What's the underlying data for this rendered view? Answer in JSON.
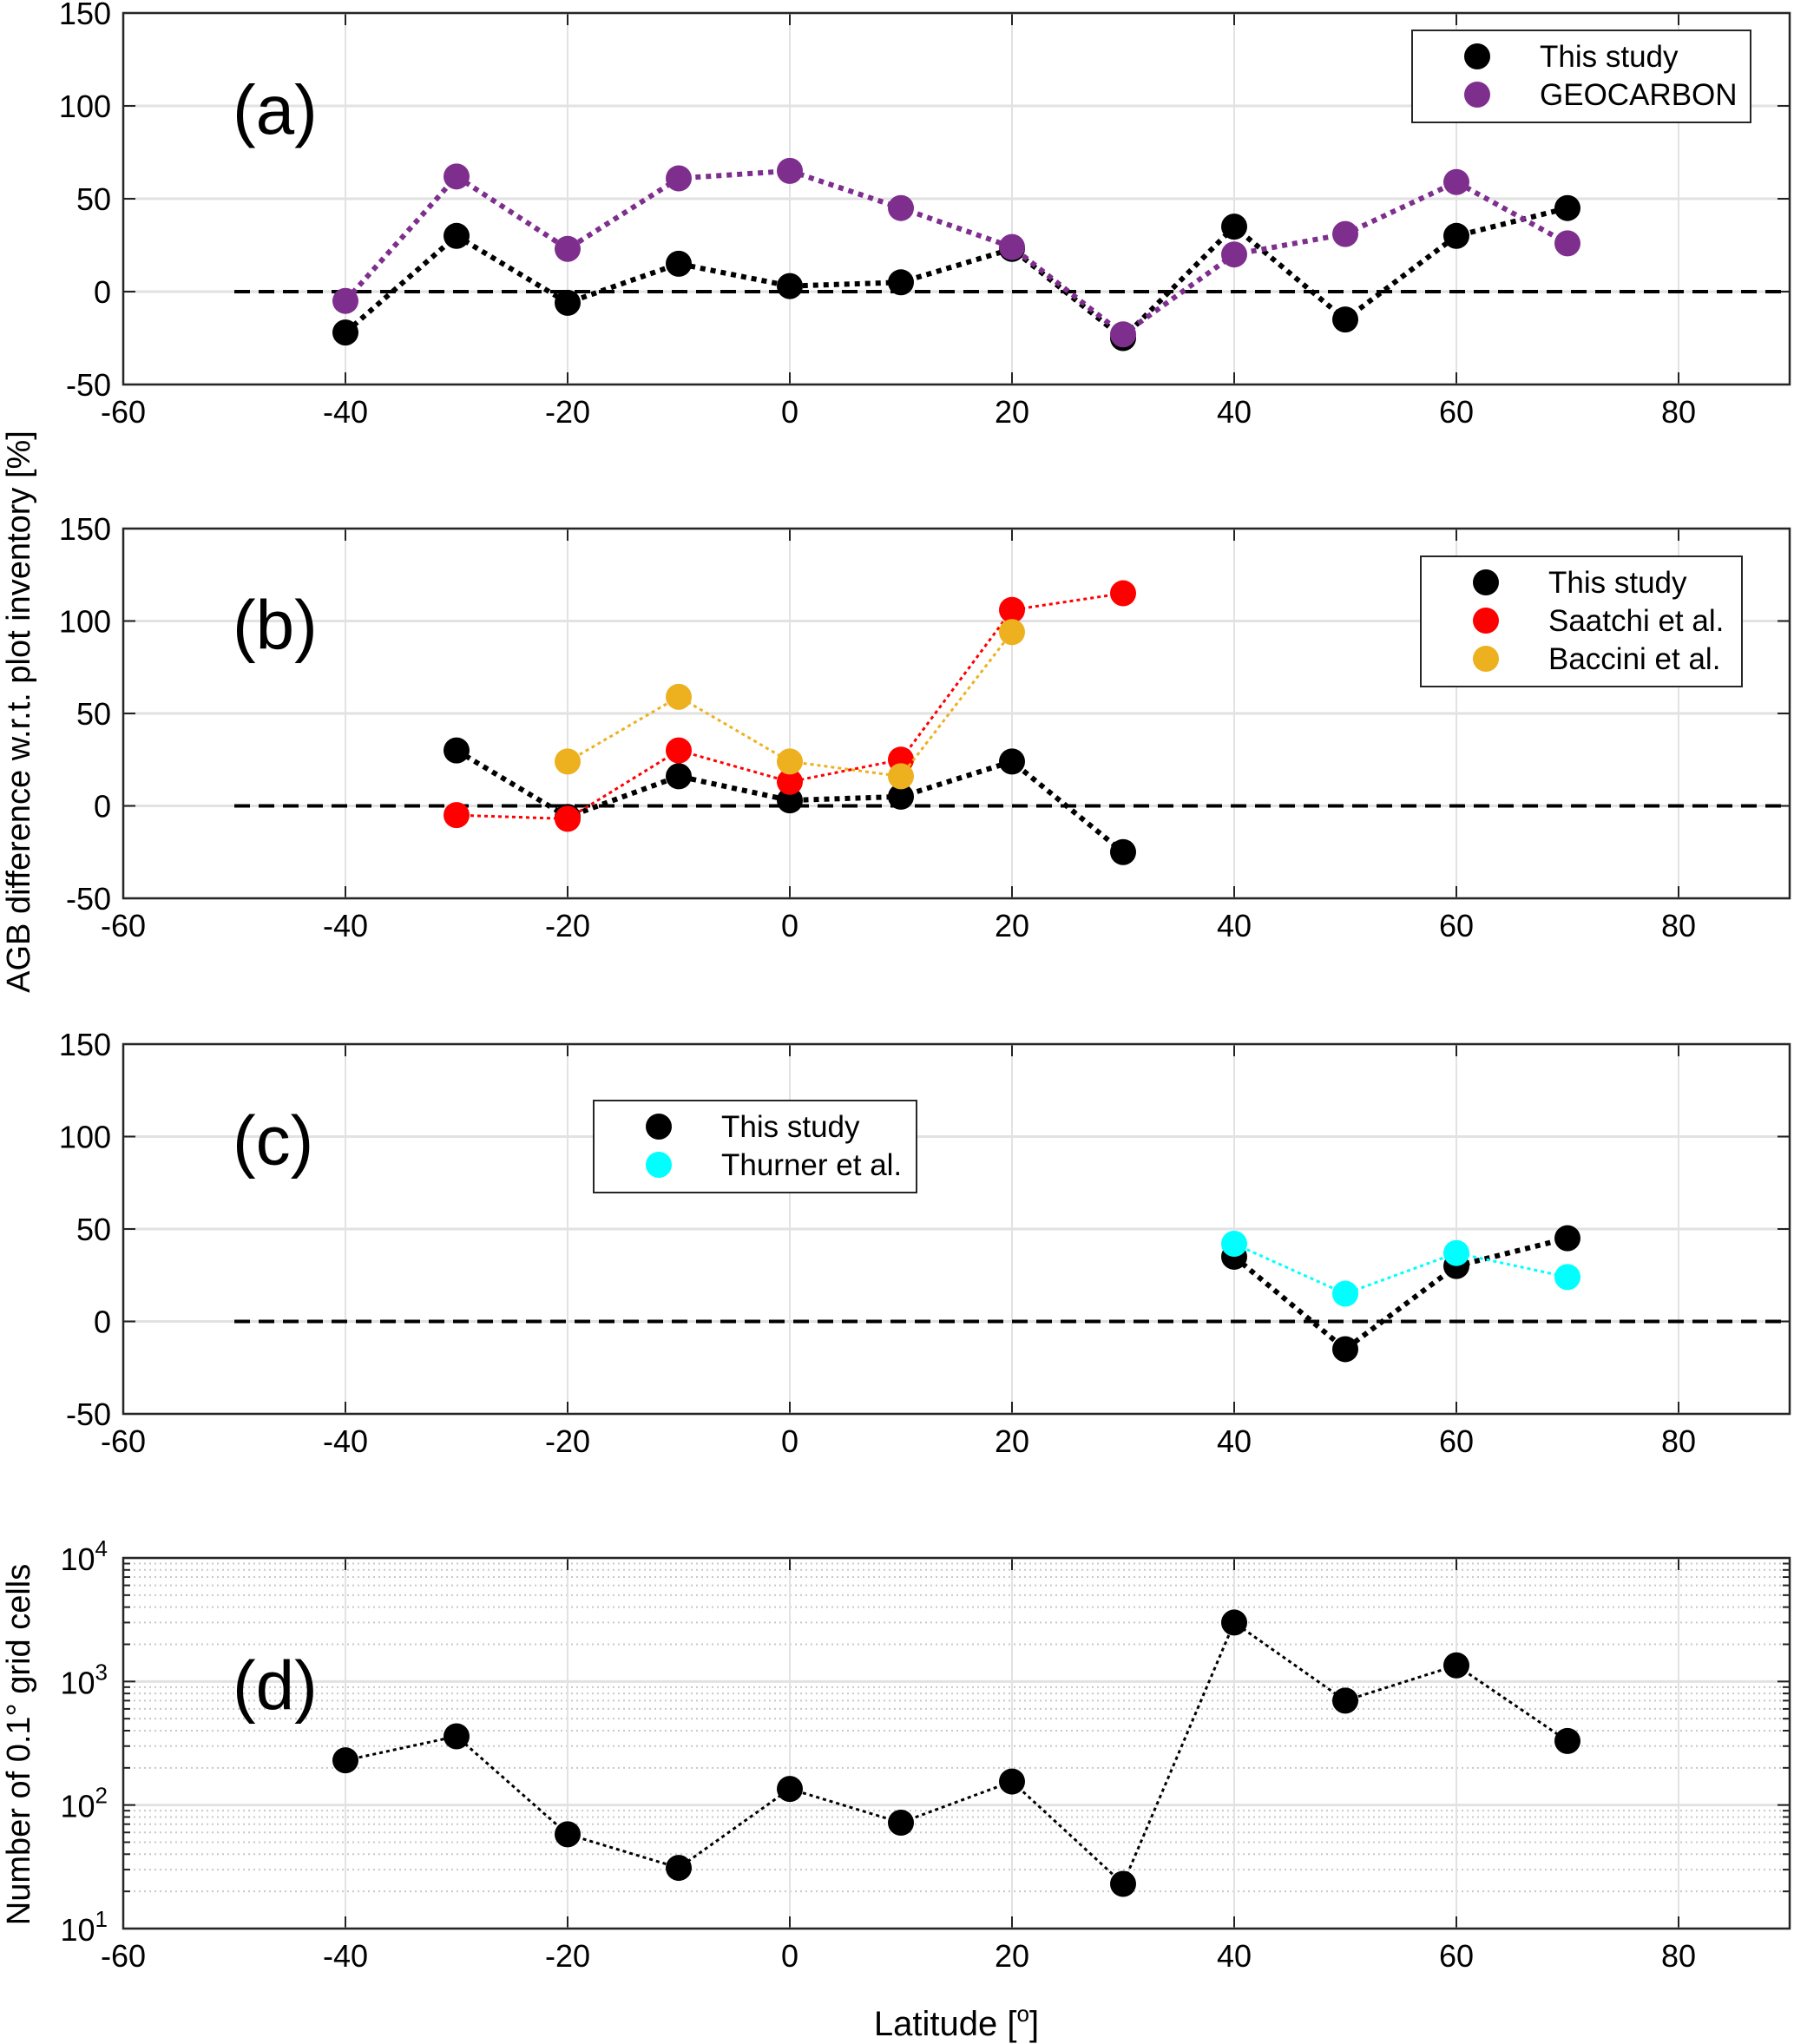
{
  "chart_data": [
    {
      "type": "line",
      "panel_label": "(a)",
      "xlim": [
        -60,
        90
      ],
      "ylim": [
        -50,
        150
      ],
      "xticks": [
        -60,
        -40,
        -20,
        0,
        20,
        40,
        60,
        80
      ],
      "yticks": [
        -50,
        0,
        50,
        100,
        150
      ],
      "grid": true,
      "reference_line": 0,
      "legend_placement": "top-right",
      "x": [
        -40,
        -30,
        -20,
        -10,
        0,
        10,
        20,
        30,
        40,
        50,
        60,
        70
      ],
      "series": [
        {
          "name": "This study",
          "color": "#000000",
          "x": [
            -40,
            -30,
            -20,
            -10,
            0,
            10,
            20,
            30,
            40,
            50,
            60,
            70
          ],
          "values": [
            -22,
            30,
            -6,
            15,
            3,
            5,
            23,
            -25,
            35,
            -15,
            30,
            45
          ]
        },
        {
          "name": "GEOCARBON",
          "color": "#7e2f8e",
          "x": [
            -40,
            -30,
            -20,
            -10,
            0,
            10,
            20,
            30,
            40,
            50,
            60,
            70
          ],
          "values": [
            -5,
            62,
            23,
            61,
            65,
            45,
            24,
            -23,
            20,
            31,
            59,
            26
          ]
        }
      ]
    },
    {
      "type": "line",
      "panel_label": "(b)",
      "xlim": [
        -60,
        90
      ],
      "ylim": [
        -50,
        150
      ],
      "xticks": [
        -60,
        -40,
        -20,
        0,
        20,
        40,
        60,
        80
      ],
      "yticks": [
        -50,
        0,
        50,
        100,
        150
      ],
      "grid": true,
      "reference_line": 0,
      "legend_placement": "top-right",
      "series": [
        {
          "name": "This study",
          "color": "#000000",
          "x": [
            -30,
            -20,
            -10,
            0,
            10,
            20,
            30
          ],
          "values": [
            30,
            -6,
            16,
            3,
            5,
            24,
            -25
          ]
        },
        {
          "name": "Saatchi et al.",
          "color": "#ff0000",
          "x": [
            -30,
            -20,
            -10,
            0,
            10,
            20,
            30
          ],
          "values": [
            -5,
            -7,
            30,
            13,
            25,
            106,
            115
          ]
        },
        {
          "name": "Baccini et al.",
          "color": "#edb120",
          "x": [
            -20,
            -10,
            0,
            10,
            20
          ],
          "values": [
            24,
            59,
            24,
            16,
            94
          ]
        }
      ]
    },
    {
      "type": "line",
      "panel_label": "(c)",
      "xlim": [
        -60,
        90
      ],
      "ylim": [
        -50,
        150
      ],
      "xticks": [
        -60,
        -40,
        -20,
        0,
        20,
        40,
        60,
        80
      ],
      "yticks": [
        -50,
        0,
        50,
        100,
        150
      ],
      "grid": true,
      "reference_line": 0,
      "legend_placement": "top-left",
      "series": [
        {
          "name": "This study",
          "color": "#000000",
          "x": [
            40,
            50,
            60,
            70
          ],
          "values": [
            35,
            -15,
            30,
            45
          ]
        },
        {
          "name": "Thurner et al.",
          "color": "#00ffff",
          "x": [
            40,
            50,
            60,
            70
          ],
          "values": [
            42,
            15,
            37,
            24
          ]
        }
      ]
    },
    {
      "type": "line",
      "panel_label": "(d)",
      "xlim": [
        -60,
        90
      ],
      "ylim": [
        10,
        10000
      ],
      "yscale": "log",
      "xticks": [
        -60,
        -40,
        -20,
        0,
        20,
        40,
        60,
        80
      ],
      "yticks": [
        10,
        100,
        1000,
        10000
      ],
      "grid": true,
      "xlabel": "Latitude [°]",
      "ylabel": "Number of 0.1° grid cells",
      "series": [
        {
          "color": "#000000",
          "x": [
            -40,
            -30,
            -20,
            -10,
            0,
            10,
            20,
            30,
            40,
            50,
            60,
            70
          ],
          "values": [
            230,
            360,
            58,
            31,
            135,
            72,
            155,
            23,
            3000,
            700,
            1350,
            330
          ]
        }
      ]
    }
  ],
  "shared_ylabel": "AGB difference w.r.t. plot inventory [%]",
  "xlabel": "Latitude",
  "xlabel_unit": "[°]",
  "ylabel_d_prefix": "Number of 0.1",
  "ylabel_d_suffix": " grid cells",
  "degree_mark": "o"
}
